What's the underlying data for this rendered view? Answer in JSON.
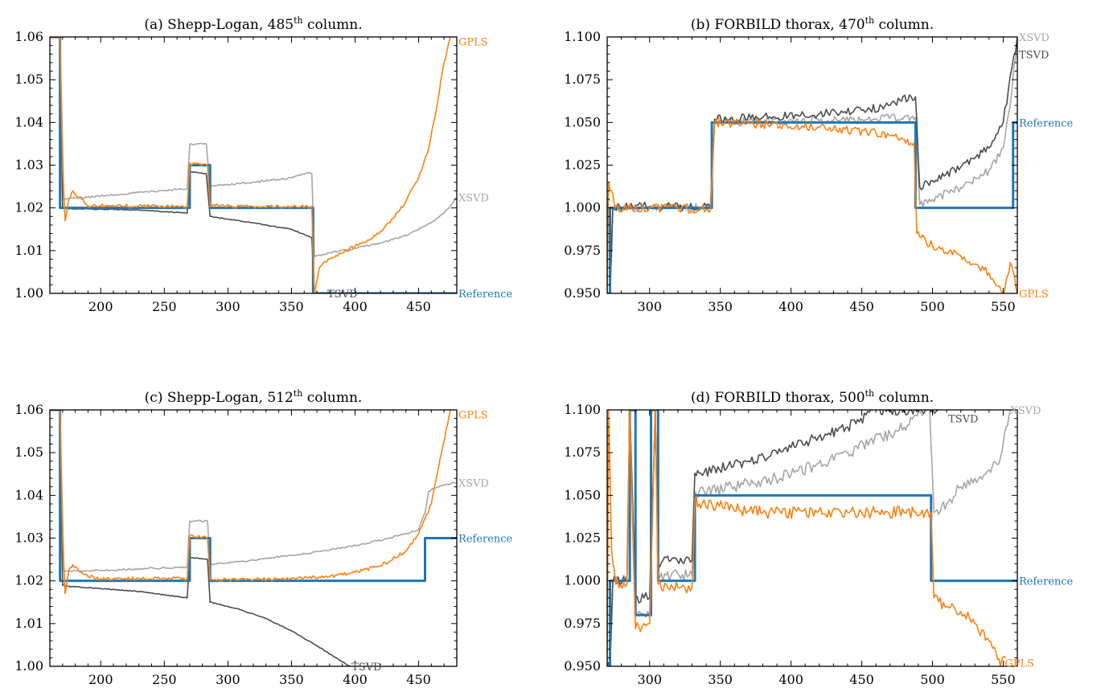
{
  "figure": {
    "background": "#ffffff"
  },
  "colors": {
    "Reference": "#1f77b4",
    "GPLS": "#ff7f0e",
    "TSVD": "#4d4d4d",
    "XSVD": "#a6a6a6"
  },
  "chart_data": [
    {
      "type": "line",
      "title_prefix": "(a) Shepp-Logan, 485",
      "title_sup": "th",
      "title_suffix": " column.",
      "xlim": [
        160,
        480
      ],
      "ylim": [
        1.0,
        1.06
      ],
      "xticks": [
        200,
        250,
        300,
        350,
        400,
        450
      ],
      "yticks": [
        1.0,
        1.01,
        1.02,
        1.03,
        1.04,
        1.05,
        1.06
      ],
      "ytick_labels": [
        "1.00",
        "1.01",
        "1.02",
        "1.03",
        "1.04",
        "1.05",
        "1.06"
      ],
      "series": [
        {
          "name": "XSVD",
          "label": "XSVD",
          "label_at": [
            480,
            1.0225
          ],
          "noise": 0.0002,
          "x": [
            160,
            168,
            171,
            175,
            185,
            200,
            230,
            268,
            270,
            283,
            286,
            290,
            320,
            350,
            362,
            366,
            368,
            370,
            380,
            400,
            420,
            440,
            460,
            470,
            480
          ],
          "y": [
            1.06,
            1.06,
            1.022,
            1.0222,
            1.0224,
            1.0228,
            1.0236,
            1.0245,
            1.035,
            1.035,
            1.025,
            1.0252,
            1.026,
            1.027,
            1.0282,
            1.028,
            1.0085,
            1.0088,
            1.0095,
            1.0105,
            1.0118,
            1.0135,
            1.0165,
            1.0188,
            1.0225
          ]
        },
        {
          "name": "TSVD",
          "label": "TSVD",
          "label_at": [
            377,
            1.0
          ],
          "noise": 0.0001,
          "x": [
            160,
            168,
            170,
            175,
            200,
            230,
            268,
            270,
            283,
            286,
            290,
            320,
            350,
            362,
            366,
            368
          ],
          "y": [
            1.06,
            1.06,
            1.02,
            1.0198,
            1.0197,
            1.0195,
            1.0188,
            1.0285,
            1.028,
            1.018,
            1.0178,
            1.0165,
            1.015,
            1.0135,
            1.013,
            1.0
          ]
        },
        {
          "name": "Reference",
          "label": "Reference",
          "label_at": [
            480,
            1.0
          ],
          "noise": 0,
          "x": [
            160,
            168,
            168,
            270,
            270,
            286,
            286,
            367,
            367,
            480
          ],
          "y": [
            1.06,
            1.06,
            1.02,
            1.02,
            1.03,
            1.03,
            1.02,
            1.02,
            1.0,
            1.0
          ]
        },
        {
          "name": "GPLS",
          "label": "GPLS",
          "label_at": [
            480,
            1.059
          ],
          "noise": 0.0004,
          "x": [
            160,
            168,
            170,
            172,
            175,
            178,
            185,
            190,
            200,
            230,
            268,
            270,
            284,
            286,
            290,
            320,
            350,
            366,
            368,
            372,
            380,
            390,
            400,
            410,
            420,
            430,
            440,
            450,
            458,
            465,
            470,
            475
          ],
          "y": [
            1.06,
            1.06,
            1.03,
            1.017,
            1.022,
            1.024,
            1.022,
            1.0205,
            1.0205,
            1.0205,
            1.0203,
            1.0305,
            1.03,
            1.0203,
            1.0205,
            1.0203,
            1.0203,
            1.0203,
            1.0,
            1.006,
            1.008,
            1.0095,
            1.011,
            1.0125,
            1.0145,
            1.0175,
            1.0215,
            1.027,
            1.034,
            1.045,
            1.054,
            1.06
          ]
        }
      ]
    },
    {
      "type": "line",
      "title_prefix": "(b) FORBILD thorax, 470",
      "title_sup": "th",
      "title_suffix": " column.",
      "xlim": [
        270,
        560
      ],
      "ylim": [
        0.95,
        1.1
      ],
      "xticks": [
        300,
        350,
        400,
        450,
        500,
        550
      ],
      "yticks": [
        0.95,
        0.975,
        1.0,
        1.025,
        1.05,
        1.075,
        1.1
      ],
      "ytick_labels": [
        "0.950",
        "0.975",
        "1.000",
        "1.025",
        "1.050",
        "1.075",
        "1.100"
      ],
      "series": [
        {
          "name": "XSVD",
          "label": "XSVD",
          "label_at": [
            560,
            1.1
          ],
          "noise": 0.0025,
          "x": [
            270,
            272,
            274,
            300,
            340,
            343,
            346,
            380,
            420,
            460,
            485,
            488,
            491,
            500,
            520,
            540,
            550,
            555,
            560
          ],
          "y": [
            0.95,
            0.95,
            1.0,
            1.0,
            1.0,
            1.0,
            1.051,
            1.0505,
            1.051,
            1.052,
            1.053,
            1.053,
            1.002,
            1.005,
            1.012,
            1.022,
            1.035,
            1.06,
            1.1
          ]
        },
        {
          "name": "TSVD",
          "label": "TSVD",
          "label_at": [
            560,
            1.09
          ],
          "noise": 0.0025,
          "x": [
            270,
            272,
            274,
            300,
            340,
            343,
            346,
            380,
            420,
            450,
            470,
            485,
            488,
            491,
            500,
            520,
            540,
            550,
            560
          ],
          "y": [
            0.95,
            0.95,
            1.0,
            1.001,
            1.001,
            1.001,
            1.052,
            1.053,
            1.055,
            1.057,
            1.06,
            1.065,
            1.065,
            1.012,
            1.016,
            1.024,
            1.035,
            1.05,
            1.1
          ]
        },
        {
          "name": "Reference",
          "label": "Reference",
          "label_at": [
            560,
            1.05
          ],
          "noise": 0,
          "x": [
            270,
            272,
            272,
            344,
            344,
            488,
            488,
            557,
            557,
            560
          ],
          "y": [
            0.95,
            0.95,
            1.0,
            1.0,
            1.05,
            1.05,
            1.0,
            1.0,
            1.05,
            1.05
          ]
        },
        {
          "name": "GPLS",
          "label": "GPLS",
          "label_at": [
            560,
            0.95
          ],
          "noise": 0.0025,
          "x": [
            270,
            271,
            273,
            276,
            285,
            300,
            340,
            343,
            346,
            380,
            420,
            460,
            480,
            487,
            489,
            491,
            500,
            520,
            540,
            550,
            553,
            555,
            558,
            560
          ],
          "y": [
            0.95,
            1.015,
            1.01,
            1.0,
            1.0,
            1.0,
            0.999,
            0.999,
            1.05,
            1.049,
            1.047,
            1.044,
            1.04,
            1.038,
            0.985,
            0.983,
            0.978,
            0.972,
            0.962,
            0.95,
            0.96,
            0.968,
            0.96,
            0.95
          ]
        }
      ]
    },
    {
      "type": "line",
      "title_prefix": "(c) Shepp-Logan, 512",
      "title_sup": "th",
      "title_suffix": " column.",
      "xlim": [
        160,
        480
      ],
      "ylim": [
        1.0,
        1.06
      ],
      "xticks": [
        200,
        250,
        300,
        350,
        400,
        450
      ],
      "yticks": [
        1.0,
        1.01,
        1.02,
        1.03,
        1.04,
        1.05,
        1.06
      ],
      "ytick_labels": [
        "1.00",
        "1.01",
        "1.02",
        "1.03",
        "1.04",
        "1.05",
        "1.06"
      ],
      "series": [
        {
          "name": "XSVD",
          "label": "XSVD",
          "label_at": [
            480,
            1.043
          ],
          "noise": 0.0002,
          "x": [
            160,
            168,
            171,
            175,
            200,
            230,
            268,
            270,
            284,
            286,
            290,
            320,
            350,
            380,
            410,
            440,
            450,
            455,
            458,
            465,
            480
          ],
          "y": [
            1.06,
            1.06,
            1.0225,
            1.0223,
            1.0224,
            1.0228,
            1.0232,
            1.034,
            1.034,
            1.0238,
            1.024,
            1.0248,
            1.026,
            1.0272,
            1.0288,
            1.031,
            1.032,
            1.036,
            1.041,
            1.042,
            1.043
          ]
        },
        {
          "name": "TSVD",
          "label": "TSVD",
          "label_at": [
            396,
            1.0
          ],
          "noise": 0.0001,
          "x": [
            160,
            168,
            170,
            175,
            200,
            230,
            268,
            270,
            284,
            286,
            290,
            310,
            330,
            350,
            370,
            385,
            396
          ],
          "y": [
            1.06,
            1.06,
            1.019,
            1.0187,
            1.0182,
            1.0175,
            1.016,
            1.0255,
            1.025,
            1.015,
            1.0148,
            1.0132,
            1.0112,
            1.0083,
            1.0048,
            1.002,
            1.0
          ]
        },
        {
          "name": "Reference",
          "label": "Reference",
          "label_at": [
            480,
            1.03
          ],
          "noise": 0,
          "x": [
            160,
            168,
            168,
            270,
            270,
            286,
            286,
            455,
            455,
            480
          ],
          "y": [
            1.06,
            1.06,
            1.02,
            1.02,
            1.03,
            1.03,
            1.02,
            1.02,
            1.03,
            1.03
          ]
        },
        {
          "name": "GPLS",
          "label": "GPLS",
          "label_at": [
            480,
            1.059
          ],
          "noise": 0.0004,
          "x": [
            160,
            168,
            170,
            172,
            175,
            178,
            185,
            190,
            200,
            230,
            268,
            270,
            284,
            286,
            290,
            320,
            350,
            380,
            400,
            420,
            440,
            450,
            460,
            468,
            475
          ],
          "y": [
            1.06,
            1.06,
            1.03,
            1.017,
            1.0225,
            1.0238,
            1.022,
            1.021,
            1.0205,
            1.0205,
            1.0205,
            1.0305,
            1.03,
            1.0203,
            1.0203,
            1.0203,
            1.0205,
            1.021,
            1.022,
            1.0235,
            1.027,
            1.031,
            1.038,
            1.05,
            1.06
          ]
        }
      ]
    },
    {
      "type": "line",
      "title_prefix": "(d) FORBILD thorax, 500",
      "title_sup": "th",
      "title_suffix": " column.",
      "xlim": [
        270,
        560
      ],
      "ylim": [
        0.95,
        1.1
      ],
      "xticks": [
        300,
        350,
        400,
        450,
        500,
        550
      ],
      "yticks": [
        0.95,
        0.975,
        1.0,
        1.025,
        1.05,
        1.075,
        1.1
      ],
      "ytick_labels": [
        "0.950",
        "0.975",
        "1.000",
        "1.025",
        "1.050",
        "1.075",
        "1.100"
      ],
      "series": [
        {
          "name": "XSVD",
          "label": "XSVD",
          "label_at": [
            554,
            1.1
          ],
          "noise": 0.0035,
          "x": [
            270,
            272,
            274,
            284,
            286,
            290,
            296,
            300,
            304,
            306,
            315,
            330,
            332,
            335,
            360,
            400,
            440,
            480,
            495,
            498,
            501,
            510,
            520,
            530,
            540,
            548,
            552,
            555
          ],
          "y": [
            0.95,
            0.95,
            1.0,
            1.0,
            1.1,
            0.98,
            0.98,
            0.98,
            1.1,
            1.003,
            1.003,
            1.003,
            1.052,
            1.052,
            1.055,
            1.062,
            1.075,
            1.09,
            1.1,
            1.1,
            1.04,
            1.045,
            1.055,
            1.06,
            1.065,
            1.072,
            1.09,
            1.1
          ]
        },
        {
          "name": "TSVD",
          "label": "TSVD",
          "label_at": [
            510,
            1.095
          ],
          "noise": 0.003,
          "x": [
            270,
            272,
            274,
            284,
            286,
            290,
            296,
            300,
            304,
            306,
            315,
            330,
            332,
            335,
            370,
            400,
            440,
            460,
            480,
            490,
            495,
            500,
            504
          ],
          "y": [
            0.95,
            0.95,
            1.0,
            1.0,
            1.1,
            0.99,
            0.99,
            0.99,
            1.1,
            1.01,
            1.012,
            1.012,
            1.063,
            1.063,
            1.07,
            1.078,
            1.09,
            1.1,
            1.1,
            1.1,
            1.1,
            1.1,
            1.1
          ]
        },
        {
          "name": "Reference",
          "label": "Reference",
          "label_at": [
            560,
            1.0
          ],
          "noise": 0,
          "x": [
            270,
            272,
            272,
            286,
            286,
            290,
            290,
            301,
            301,
            306,
            306,
            332,
            332,
            499,
            499,
            560
          ],
          "y": [
            0.95,
            0.95,
            1.0,
            1.0,
            1.1,
            1.1,
            0.98,
            0.98,
            1.1,
            1.1,
            1.0,
            1.0,
            1.05,
            1.05,
            1.0,
            1.0
          ]
        },
        {
          "name": "GPLS",
          "label": "GPLS",
          "label_at": [
            550,
            0.952
          ],
          "noise": 0.0035,
          "x": [
            270,
            271,
            273,
            276,
            284,
            286,
            290,
            296,
            300,
            304,
            306,
            320,
            330,
            332,
            335,
            380,
            440,
            480,
            495,
            499,
            501,
            510,
            520,
            530,
            540,
            545,
            548,
            552
          ],
          "y": [
            0.95,
            1.1,
            1.02,
            0.998,
            0.998,
            1.1,
            0.972,
            0.975,
            0.975,
            1.1,
            0.998,
            0.996,
            0.996,
            1.048,
            1.045,
            1.04,
            1.04,
            1.04,
            1.04,
            1.04,
            0.99,
            0.985,
            0.982,
            0.975,
            0.965,
            0.958,
            0.95,
            0.955
          ]
        }
      ]
    }
  ]
}
